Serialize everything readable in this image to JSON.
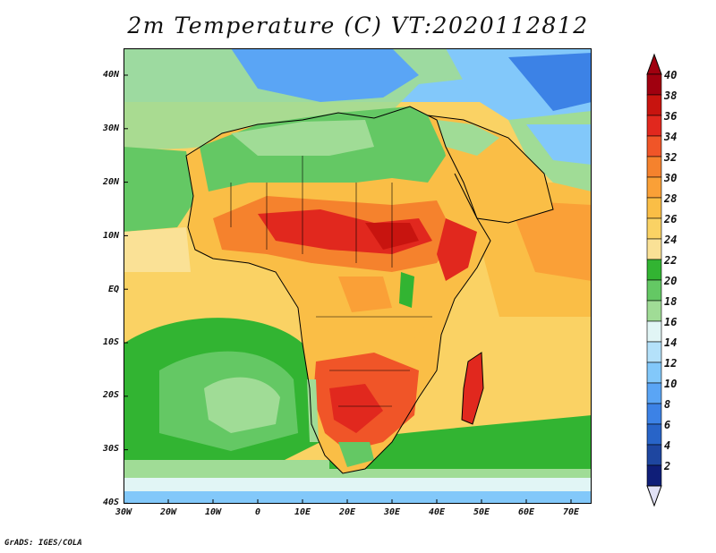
{
  "title": "2m Temperature (C) VT:2020112812",
  "footer": "GrADS: IGES/COLA",
  "map": {
    "lon_range": [
      -30,
      75
    ],
    "lat_range": [
      -40,
      45
    ],
    "lat_ticks": [
      "40N",
      "30N",
      "20N",
      "10N",
      "EQ",
      "10S",
      "20S",
      "30S",
      "40S"
    ],
    "lon_ticks": [
      "30W",
      "20W",
      "10W",
      "0",
      "10E",
      "20E",
      "30E",
      "40E",
      "50E",
      "60E",
      "70E"
    ]
  },
  "colorbar": {
    "labels": [
      "40",
      "38",
      "36",
      "34",
      "32",
      "30",
      "28",
      "26",
      "24",
      "22",
      "20",
      "18",
      "16",
      "14",
      "12",
      "10",
      "8",
      "6",
      "4",
      "2"
    ],
    "colors": [
      "#a0000f",
      "#c8140f",
      "#e1281e",
      "#f05528",
      "#f5822d",
      "#faa037",
      "#fabe46",
      "#fad264",
      "#fae196",
      "#32b432",
      "#64c864",
      "#a0dc96",
      "#e1f5f5",
      "#b4e1fa",
      "#82c8fa",
      "#5aa5f5",
      "#3c82e6",
      "#2864c8",
      "#1e46a0",
      "#0f1e78"
    ],
    "under_color": "#e1e1f5"
  }
}
